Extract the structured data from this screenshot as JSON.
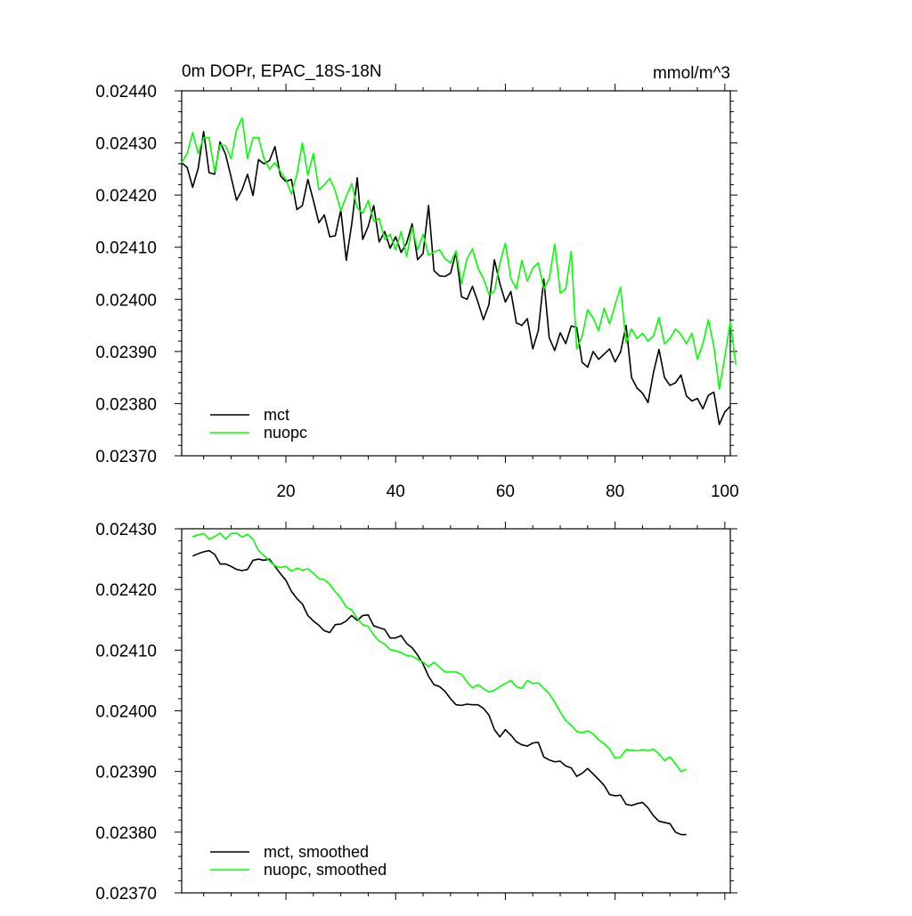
{
  "colors": {
    "mct": "#000000",
    "nuopc": "#00ff00",
    "axis": "#000000",
    "background": "#ffffff"
  },
  "chart_data": [
    {
      "type": "line",
      "title": "0m DOPr, EPAC_18S-18N",
      "units_label": "mmol/m^3",
      "xlabel": "",
      "ylabel": "",
      "xlim": [
        1,
        101
      ],
      "ylim": [
        0.0237,
        0.0244
      ],
      "x_tick_labels": [
        "20",
        "40",
        "60",
        "80",
        "100"
      ],
      "y_tick_labels": [
        "0.02370",
        "0.02380",
        "0.02390",
        "0.02400",
        "0.02410",
        "0.02420",
        "0.02430",
        "0.02440"
      ],
      "legend_position": "bottom-left",
      "series": [
        {
          "name": "mct",
          "color": "#000000",
          "x_start": 1,
          "values": [
            0.024262,
            0.024253,
            0.024215,
            0.024251,
            0.024322,
            0.024243,
            0.02424,
            0.024302,
            0.024278,
            0.024235,
            0.02419,
            0.02421,
            0.02424,
            0.024199,
            0.024268,
            0.02426,
            0.024266,
            0.024293,
            0.024237,
            0.024226,
            0.02423,
            0.024172,
            0.02418,
            0.02423,
            0.02419,
            0.024147,
            0.024162,
            0.02412,
            0.024122,
            0.024171,
            0.024075,
            0.024145,
            0.024233,
            0.024115,
            0.02414,
            0.02418,
            0.02411,
            0.02413,
            0.024098,
            0.02412,
            0.02409,
            0.024108,
            0.024145,
            0.024076,
            0.024088,
            0.02418,
            0.024055,
            0.024045,
            0.024044,
            0.02405,
            0.02409,
            0.024005,
            0.024,
            0.024025,
            0.023995,
            0.023961,
            0.02399,
            0.024076,
            0.02403,
            0.023995,
            0.024015,
            0.023955,
            0.02395,
            0.023963,
            0.023905,
            0.02394,
            0.024039,
            0.023926,
            0.023902,
            0.023936,
            0.023915,
            0.023949,
            0.023946,
            0.023879,
            0.02387,
            0.0239,
            0.023885,
            0.023895,
            0.023905,
            0.02388,
            0.023899,
            0.02395,
            0.02385,
            0.02383,
            0.02382,
            0.023802,
            0.02386,
            0.023904,
            0.02385,
            0.023835,
            0.02384,
            0.023855,
            0.023815,
            0.023805,
            0.02381,
            0.02379,
            0.023816,
            0.023822,
            0.02376,
            0.023784,
            0.023795
          ]
        },
        {
          "name": "nuopc",
          "color": "#00ff00",
          "x_start": 1,
          "values": [
            0.024262,
            0.02428,
            0.02432,
            0.02428,
            0.02431,
            0.02431,
            0.024245,
            0.024296,
            0.024295,
            0.02427,
            0.024325,
            0.024348,
            0.02427,
            0.02431,
            0.02431,
            0.02427,
            0.02425,
            0.024262,
            0.024245,
            0.02423,
            0.024202,
            0.02424,
            0.0243,
            0.024238,
            0.02428,
            0.02421,
            0.02422,
            0.024232,
            0.024208,
            0.02417,
            0.024198,
            0.024222,
            0.024175,
            0.024165,
            0.02419,
            0.02415,
            0.024155,
            0.024115,
            0.024125,
            0.024095,
            0.02413,
            0.024082,
            0.024138,
            0.024095,
            0.024125,
            0.024085,
            0.024091,
            0.024095,
            0.024078,
            0.02407,
            0.024093,
            0.02403,
            0.024078,
            0.024097,
            0.02406,
            0.02404,
            0.02401,
            0.024015,
            0.02407,
            0.024108,
            0.02404,
            0.02402,
            0.024075,
            0.024035,
            0.02406,
            0.02407,
            0.02402,
            0.02404,
            0.024106,
            0.024012,
            0.02402,
            0.024092,
            0.023905,
            0.02393,
            0.02398,
            0.023964,
            0.02394,
            0.023983,
            0.023953,
            0.02399,
            0.024023,
            0.023917,
            0.023943,
            0.023925,
            0.023935,
            0.02392,
            0.02393,
            0.023965,
            0.023915,
            0.023925,
            0.023943,
            0.023933,
            0.023915,
            0.023935,
            0.023885,
            0.023915,
            0.023961,
            0.02391,
            0.023828,
            0.02389,
            0.023957,
            0.023875
          ]
        }
      ]
    },
    {
      "type": "line",
      "title": "",
      "xlabel": "",
      "ylabel": "",
      "xlim": [
        1,
        101
      ],
      "ylim": [
        0.0237,
        0.0243
      ],
      "y_tick_labels": [
        "0.02370",
        "0.02380",
        "0.02390",
        "0.02400",
        "0.02410",
        "0.02420",
        "0.02430"
      ],
      "legend_position": "bottom-left",
      "series": [
        {
          "name": "mct, smoothed",
          "color": "#000000",
          "x_start": 3,
          "values": [
            0.024255,
            0.024259,
            0.024262,
            0.024264,
            0.024258,
            0.024242,
            0.024242,
            0.024238,
            0.024233,
            0.024231,
            0.024233,
            0.024248,
            0.02425,
            0.024248,
            0.02425,
            0.024238,
            0.024226,
            0.024215,
            0.024197,
            0.024185,
            0.024176,
            0.024157,
            0.024148,
            0.024141,
            0.024132,
            0.024129,
            0.024142,
            0.024143,
            0.024148,
            0.024157,
            0.024149,
            0.024157,
            0.024158,
            0.02414,
            0.024137,
            0.024134,
            0.02412,
            0.02412,
            0.024124,
            0.024111,
            0.024104,
            0.024092,
            0.024077,
            0.024057,
            0.024043,
            0.02404,
            0.024032,
            0.02402,
            0.02401,
            0.024009,
            0.024011,
            0.02401,
            0.02401,
            0.024004,
            0.023993,
            0.023969,
            0.023957,
            0.023969,
            0.02396,
            0.023949,
            0.023944,
            0.023942,
            0.023947,
            0.023948,
            0.023924,
            0.023919,
            0.023916,
            0.023917,
            0.023909,
            0.023906,
            0.023892,
            0.023897,
            0.023905,
            0.023896,
            0.023887,
            0.023877,
            0.023862,
            0.02386,
            0.023861,
            0.023846,
            0.023844,
            0.023847,
            0.023849,
            0.02384,
            0.023827,
            0.023818,
            0.023816,
            0.023814,
            0.0238,
            0.023796,
            0.023796
          ]
        },
        {
          "name": "nuopc, smoothed",
          "color": "#00ff00",
          "x_start": 3,
          "values": [
            0.024287,
            0.02429,
            0.024292,
            0.024283,
            0.024287,
            0.024293,
            0.024283,
            0.024292,
            0.024293,
            0.024286,
            0.024291,
            0.024283,
            0.024264,
            0.024256,
            0.024247,
            0.024239,
            0.024236,
            0.024238,
            0.02423,
            0.024235,
            0.024232,
            0.024234,
            0.024227,
            0.024218,
            0.024216,
            0.024208,
            0.024196,
            0.024186,
            0.024171,
            0.024166,
            0.024152,
            0.024142,
            0.024139,
            0.024125,
            0.024115,
            0.02411,
            0.024101,
            0.024099,
            0.024096,
            0.024091,
            0.02409,
            0.024085,
            0.02408,
            0.024073,
            0.02408,
            0.024072,
            0.024064,
            0.024064,
            0.024064,
            0.02406,
            0.024048,
            0.024038,
            0.024043,
            0.024037,
            0.024031,
            0.024034,
            0.02404,
            0.024045,
            0.02405,
            0.02404,
            0.024037,
            0.02405,
            0.024045,
            0.024046,
            0.024037,
            0.024028,
            0.024014,
            0.023998,
            0.023984,
            0.023976,
            0.023966,
            0.023964,
            0.023967,
            0.023962,
            0.023952,
            0.023946,
            0.023937,
            0.023922,
            0.023924,
            0.023936,
            0.023935,
            0.023934,
            0.023936,
            0.023934,
            0.023937,
            0.023929,
            0.023918,
            0.023924,
            0.023913,
            0.0239,
            0.023904
          ]
        }
      ]
    }
  ]
}
